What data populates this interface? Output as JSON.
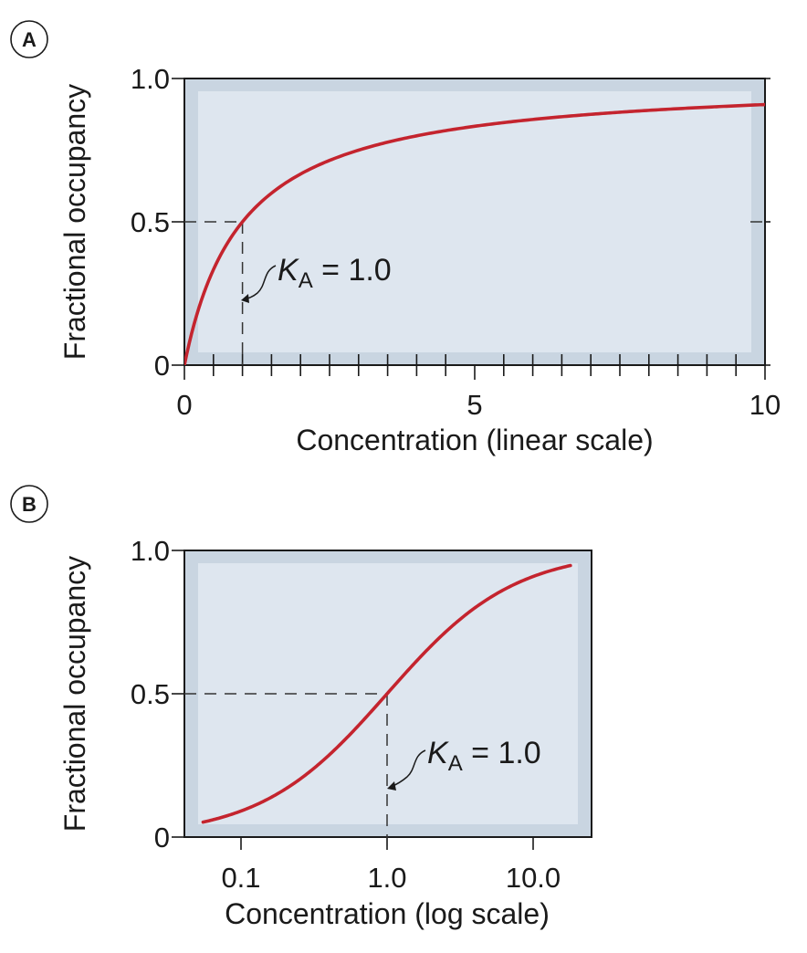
{
  "colors": {
    "plot_frame": "#c9d5e1",
    "plot_inner": "#dee6ef",
    "curve": "#c4242e"
  },
  "chart_data": [
    {
      "panel": "A",
      "type": "line",
      "xlabel": "Concentration (linear scale)",
      "ylabel": "Fractional occupancy",
      "xscale": "linear",
      "xlim": [
        0,
        10
      ],
      "ylim": [
        0,
        1.0
      ],
      "x_tick_labels": [
        "0",
        "5",
        "10"
      ],
      "y_tick_labels": [
        "0",
        "0.5",
        "1.0"
      ],
      "grid": false,
      "series": [
        {
          "x": [
            0,
            0.1,
            0.2,
            0.3,
            0.5,
            0.75,
            1.0,
            1.5,
            2,
            2.5,
            3,
            4,
            5,
            6,
            7,
            8,
            9,
            10
          ],
          "y": [
            0,
            0.091,
            0.167,
            0.231,
            0.333,
            0.429,
            0.5,
            0.6,
            0.667,
            0.714,
            0.75,
            0.8,
            0.833,
            0.857,
            0.875,
            0.889,
            0.9,
            0.909
          ]
        }
      ],
      "annotation": {
        "K_label": "K",
        "K_subscript": "A",
        "value_text": " = 1.0",
        "x": 1.0,
        "y": 0.5
      }
    },
    {
      "panel": "B",
      "type": "line",
      "xlabel": "Concentration (log scale)",
      "ylabel": "Fractional occupancy",
      "xscale": "log",
      "xlim": [
        0.05,
        20
      ],
      "ylim": [
        0,
        1.0
      ],
      "x_ticks": [
        0.1,
        1.0,
        10.0
      ],
      "x_tick_labels": [
        "0.1",
        "1.0",
        "10.0"
      ],
      "y_tick_labels": [
        "0",
        "0.5",
        "1.0"
      ],
      "grid": false,
      "series": [
        {
          "x": [
            0.055,
            0.1,
            0.2,
            0.3,
            0.5,
            0.7,
            1.0,
            1.5,
            2,
            3,
            5,
            7,
            10,
            15,
            18
          ],
          "y": [
            0.052,
            0.091,
            0.167,
            0.231,
            0.333,
            0.412,
            0.5,
            0.6,
            0.667,
            0.75,
            0.833,
            0.875,
            0.909,
            0.938,
            0.947
          ]
        }
      ],
      "annotation": {
        "K_label": "K",
        "K_subscript": "A",
        "value_text": " = 1.0",
        "x": 1.0,
        "y": 0.5
      }
    }
  ]
}
